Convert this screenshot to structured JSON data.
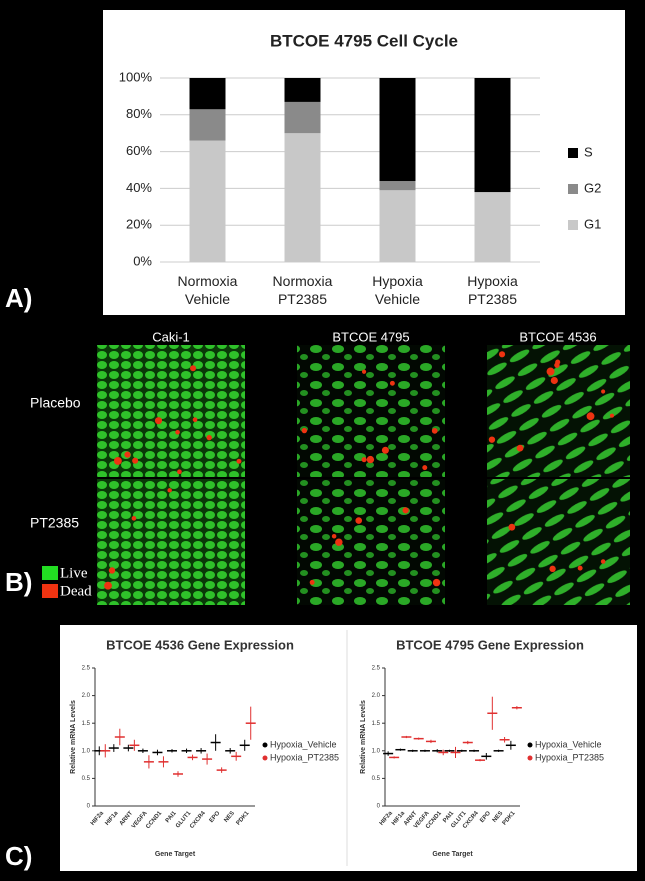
{
  "chart_data": [
    {
      "type": "bar",
      "stacked": true,
      "title": "BTCOE 4795 Cell Cycle",
      "categories": [
        "Normoxia Vehicle",
        "Normoxia PT2385",
        "Hypoxia Vehicle",
        "Hypoxia PT2385"
      ],
      "series": [
        {
          "name": "G1",
          "color": "#c8c8c8",
          "values": [
            66,
            70,
            39,
            38
          ]
        },
        {
          "name": "G2",
          "color": "#8a8a8a",
          "values": [
            17,
            17,
            5,
            0
          ]
        },
        {
          "name": "S",
          "color": "#000000",
          "values": [
            17,
            13,
            56,
            62
          ]
        }
      ],
      "ylim": [
        0,
        100
      ],
      "yticks": [
        {
          "value": 0,
          "label": "0%"
        },
        {
          "value": 20,
          "label": "20%"
        },
        {
          "value": 40,
          "label": "40%"
        },
        {
          "value": 60,
          "label": "60%"
        },
        {
          "value": 80,
          "label": "80%"
        },
        {
          "value": 100,
          "label": "100%"
        }
      ],
      "grid": true,
      "legend": "right"
    },
    {
      "type": "dot",
      "title": "BTCOE 4536 Gene Expression",
      "y_label": "Relative mRNA Levels",
      "x_label": "Gene Target",
      "categories": [
        "HIF2a",
        "HIF1a",
        "ARNT",
        "VEGFA",
        "CCND1",
        "PAI1",
        "GLUT1",
        "CXCR4",
        "EPO",
        "NES",
        "PDK1"
      ],
      "series": [
        {
          "name": "Hypoxia_Vehicle",
          "color": "#000000",
          "values": [
            1.0,
            1.05,
            1.05,
            1.0,
            0.97,
            1.0,
            1.0,
            1.0,
            1.15,
            1.0,
            1.1
          ],
          "errors": [
            0.08,
            0.07,
            0.06,
            0.04,
            0.05,
            0.03,
            0.04,
            0.05,
            0.15,
            0.05,
            0.1
          ]
        },
        {
          "name": "Hypoxia_PT2385",
          "color": "#e03030",
          "values": [
            1.0,
            1.25,
            1.1,
            0.8,
            0.8,
            0.58,
            0.88,
            0.85,
            0.65,
            0.9,
            1.5
          ],
          "errors": [
            0.12,
            0.15,
            0.1,
            0.12,
            0.1,
            0.05,
            0.05,
            0.1,
            0.05,
            0.08,
            0.3
          ]
        }
      ],
      "ylim": [
        0,
        2.5
      ],
      "yticks": [
        0,
        0.5,
        {
          "value": 1,
          "label": "1.0"
        },
        1.5,
        {
          "value": 2,
          "label": "2.0"
        },
        2.5
      ],
      "legend": "right"
    },
    {
      "type": "dot",
      "title": "BTCOE 4795 Gene Expression",
      "y_label": "Relative mRNA Levels",
      "x_label": "Gene Target",
      "categories": [
        "HIF2a",
        "HIF1a",
        "ARNT",
        "VEGFA",
        "CCND1",
        "PAI1",
        "GLUT1",
        "CXCR4",
        "EPO",
        "NES",
        "PDK1"
      ],
      "series": [
        {
          "name": "Hypoxia_Vehicle",
          "color": "#000000",
          "values": [
            0.95,
            1.02,
            1.0,
            1.0,
            1.0,
            1.0,
            1.0,
            1.0,
            0.9,
            1.0,
            1.1
          ],
          "errors": [
            0.04,
            0.02,
            0.02,
            0.02,
            0.03,
            0.02,
            0.02,
            0.02,
            0.06,
            0.02,
            0.08
          ]
        },
        {
          "name": "Hypoxia_PT2385",
          "color": "#e03030",
          "values": [
            0.88,
            1.25,
            1.22,
            1.17,
            0.97,
            0.97,
            1.15,
            0.83,
            1.68,
            1.2,
            1.78
          ],
          "errors": [
            0.02,
            0.02,
            0.02,
            0.03,
            0.05,
            0.1,
            0.03,
            0.02,
            0.3,
            0.05,
            0.03
          ]
        }
      ],
      "ylim": [
        0,
        2.5
      ],
      "yticks": [
        0,
        0.5,
        {
          "value": 1,
          "label": "1.0"
        },
        1.5,
        {
          "value": 2,
          "label": "2.0"
        },
        2.5
      ],
      "legend": "right"
    }
  ],
  "panel_labels": [
    "A)",
    "B)",
    "C)"
  ],
  "micrographs": {
    "columns": [
      "Caki-1",
      "BTCOE 4795",
      "BTCOE 4536"
    ],
    "rows": [
      "Placebo",
      "PT2385"
    ],
    "legend": [
      "Live",
      "Dead"
    ]
  }
}
